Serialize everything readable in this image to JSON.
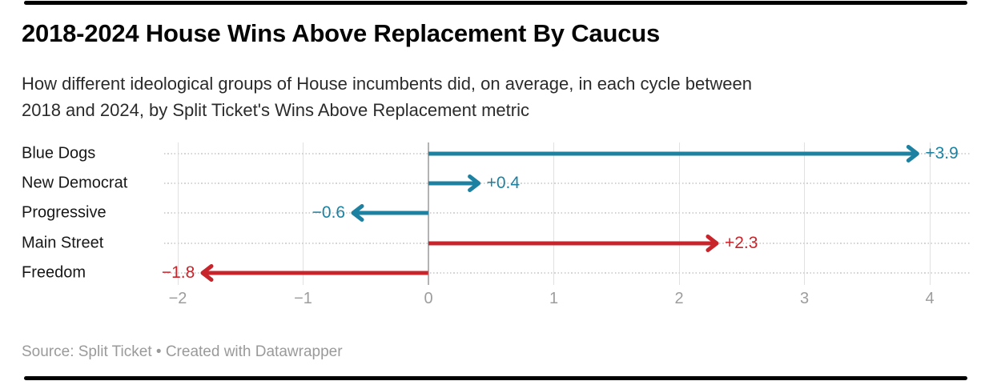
{
  "header": {
    "title": "2018-2024 House Wins Above Replacement By Caucus",
    "description_lines": [
      "How different ideological groups of House incumbents did, on average, in each cycle between",
      "2018 and 2024, by Split Ticket's Wins Above Replacement metric"
    ]
  },
  "footer": {
    "source_line": "Source: Split Ticket • Created with Datawrapper"
  },
  "colors": {
    "democrat_teal": "#1d81a2",
    "republican_red": "#c8242b",
    "gridline": "#e1e1e1",
    "zero_line": "#b3b3b3",
    "row_dots": "#d4d4d4",
    "tick_text": "#9d9d9d",
    "footer_text": "#9a9a9a",
    "rule_black": "#000000"
  },
  "chart_data": {
    "type": "bar",
    "variant": "arrow",
    "title": "2018-2024 House Wins Above Replacement By Caucus",
    "xlabel": "",
    "ylabel": "",
    "categories": [
      "Blue Dogs",
      "New Democrat",
      "Progressive",
      "Main Street",
      "Freedom"
    ],
    "values": [
      3.9,
      0.4,
      -0.6,
      2.3,
      -1.8
    ],
    "value_labels": [
      "+3.9",
      "+0.4",
      "−0.6",
      "+2.3",
      "−1.8"
    ],
    "series_colors": [
      "#1d81a2",
      "#1d81a2",
      "#1d81a2",
      "#c8242b",
      "#c8242b"
    ],
    "x_ticks": [
      -2,
      -1,
      0,
      1,
      2,
      3,
      4
    ],
    "x_tick_labels": [
      "−2",
      "−1",
      "0",
      "1",
      "2",
      "3",
      "4"
    ],
    "xlim": [
      -2.1,
      4.3
    ],
    "grid": "vertical-solid-plus-horizontal-dotted-row-guides",
    "legend": "none",
    "baseline": 0
  }
}
